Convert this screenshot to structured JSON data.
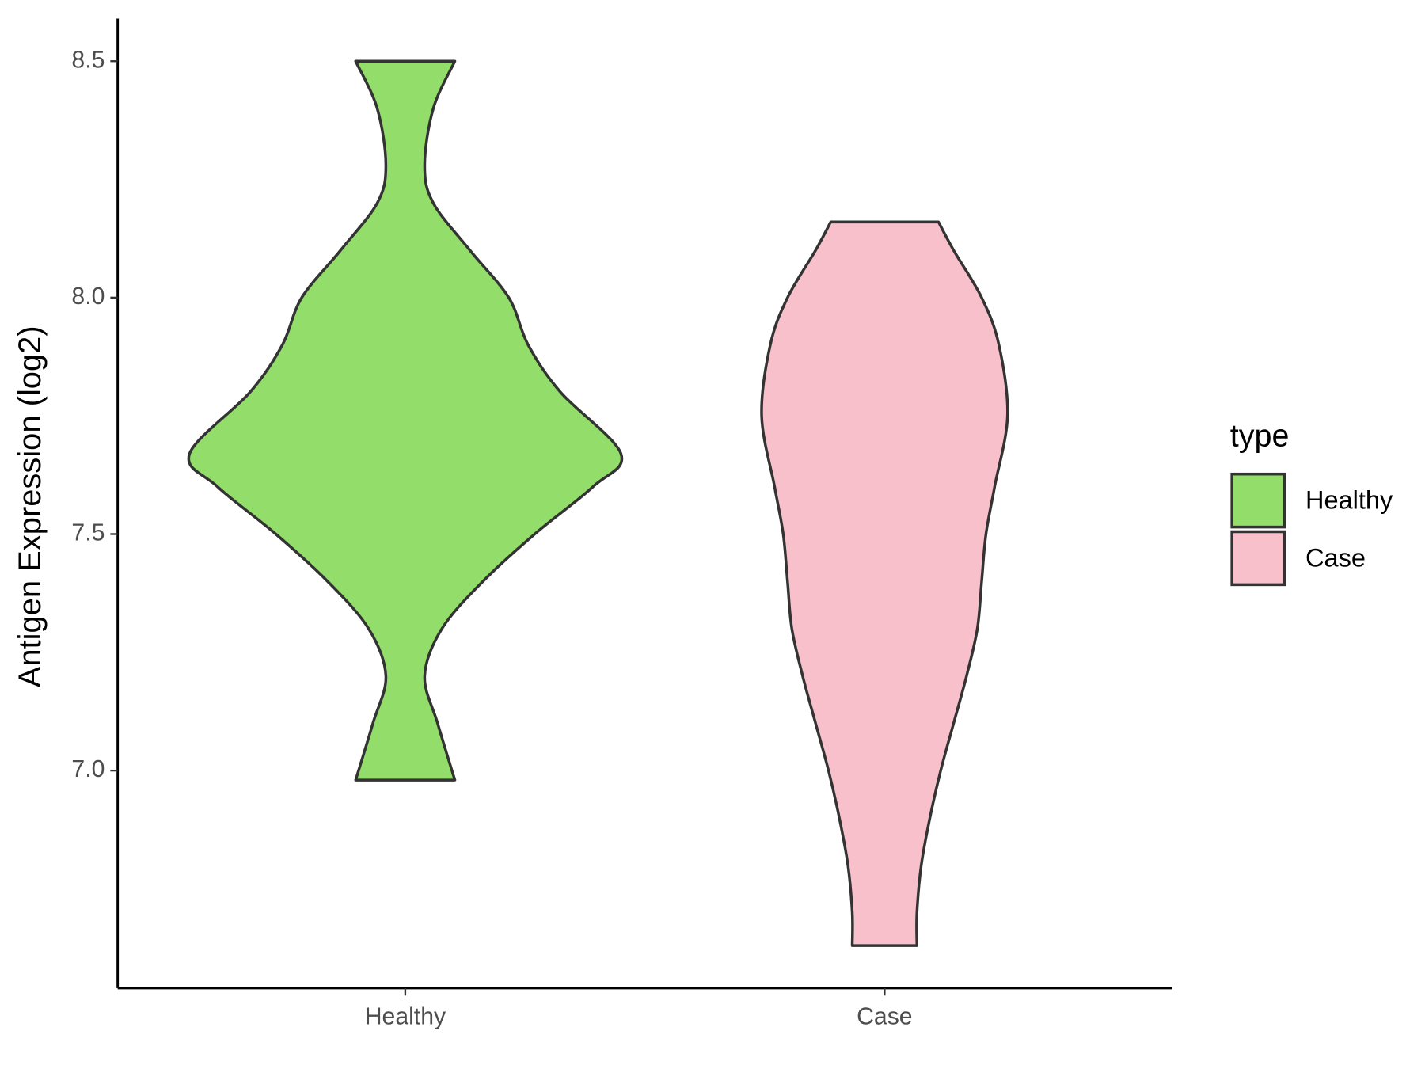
{
  "chart_data": {
    "type": "violin",
    "y_label": "Antigen Expression (log2)",
    "categories": [
      "Healthy",
      "Case"
    ],
    "ylim": [
      6.54,
      8.59
    ],
    "yticks": [
      {
        "value": 7,
        "label": "7.0"
      },
      7.5,
      {
        "value": 8,
        "label": "8.0"
      },
      8.5
    ],
    "legend_title": "type",
    "legend_position": "right",
    "series": [
      {
        "name": "Healthy",
        "color": "#93dd6b",
        "density_y": [
          8.5,
          8.4,
          8.28,
          8.2,
          8.1,
          8.0,
          7.9,
          7.8,
          7.67,
          7.6,
          7.5,
          7.4,
          7.3,
          7.2,
          7.1,
          6.98
        ],
        "density": [
          0.23,
          0.13,
          0.09,
          0.13,
          0.3,
          0.48,
          0.57,
          0.72,
          1.0,
          0.87,
          0.6,
          0.36,
          0.17,
          0.09,
          0.15,
          0.23
        ]
      },
      {
        "name": "Case",
        "color": "#f7c0cb",
        "density_y": [
          8.16,
          8.1,
          8.0,
          7.9,
          7.75,
          7.6,
          7.5,
          7.4,
          7.3,
          7.2,
          7.1,
          7.0,
          6.9,
          6.8,
          6.7,
          6.63
        ],
        "density": [
          0.25,
          0.32,
          0.45,
          0.53,
          0.57,
          0.51,
          0.47,
          0.45,
          0.43,
          0.38,
          0.32,
          0.26,
          0.21,
          0.17,
          0.15,
          0.15
        ]
      }
    ]
  }
}
